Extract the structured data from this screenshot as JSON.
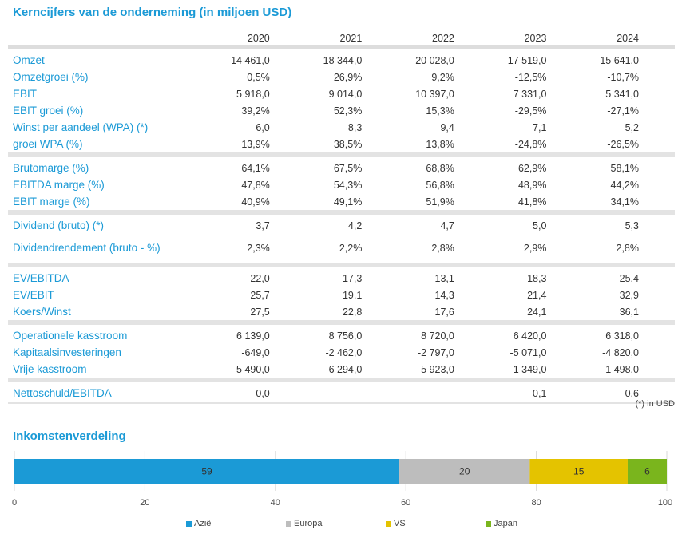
{
  "title": "Kerncijfers van de onderneming (in miljoen USD)",
  "table": {
    "years": [
      "2020",
      "2021",
      "2022",
      "2023",
      "2024"
    ],
    "groups": [
      [
        {
          "label": "Omzet",
          "values": [
            "14 461,0",
            "18 344,0",
            "20 028,0",
            "17 519,0",
            "15 641,0"
          ]
        },
        {
          "label": "Omzetgroei (%)",
          "values": [
            "0,5%",
            "26,9%",
            "9,2%",
            "-12,5%",
            "-10,7%"
          ]
        },
        {
          "label": "EBIT",
          "values": [
            "5 918,0",
            "9 014,0",
            "10 397,0",
            "7 331,0",
            "5 341,0"
          ]
        },
        {
          "label": "EBIT groei (%)",
          "values": [
            "39,2%",
            "52,3%",
            "15,3%",
            "-29,5%",
            "-27,1%"
          ]
        },
        {
          "label": "Winst per aandeel (WPA) (*)",
          "values": [
            "6,0",
            "8,3",
            "9,4",
            "7,1",
            "5,2"
          ]
        },
        {
          "label": "groei WPA (%)",
          "values": [
            "13,9%",
            "38,5%",
            "13,8%",
            "-24,8%",
            "-26,5%"
          ]
        }
      ],
      [
        {
          "label": "Brutomarge (%)",
          "values": [
            "64,1%",
            "67,5%",
            "68,8%",
            "62,9%",
            "58,1%"
          ]
        },
        {
          "label": "EBITDA marge (%)",
          "values": [
            "47,8%",
            "54,3%",
            "56,8%",
            "48,9%",
            "44,2%"
          ]
        },
        {
          "label": "EBIT marge (%)",
          "values": [
            "40,9%",
            "49,1%",
            "51,9%",
            "41,8%",
            "34,1%"
          ]
        }
      ],
      [
        {
          "label": "Dividend (bruto) (*)",
          "values": [
            "3,7",
            "4,2",
            "4,7",
            "5,0",
            "5,3"
          ]
        },
        {
          "label": "Dividendrendement (bruto - %)",
          "values": [
            "2,3%",
            "2,2%",
            "2,8%",
            "2,9%",
            "2,8%"
          ]
        }
      ],
      [
        {
          "label": "EV/EBITDA",
          "values": [
            "22,0",
            "17,3",
            "13,1",
            "18,3",
            "25,4"
          ]
        },
        {
          "label": "EV/EBIT",
          "values": [
            "25,7",
            "19,1",
            "14,3",
            "21,4",
            "32,9"
          ]
        },
        {
          "label": "Koers/Winst",
          "values": [
            "27,5",
            "22,8",
            "17,6",
            "24,1",
            "36,1"
          ]
        }
      ],
      [
        {
          "label": "Operationele kasstroom",
          "values": [
            "6 139,0",
            "8 756,0",
            "8 720,0",
            "6 420,0",
            "6 318,0"
          ]
        },
        {
          "label": "Kapitaalsinvesteringen",
          "values": [
            "-649,0",
            "-2 462,0",
            "-2 797,0",
            "-5 071,0",
            "-4 820,0"
          ]
        },
        {
          "label": "Vrije kasstroom",
          "values": [
            "5 490,0",
            "6 294,0",
            "5 923,0",
            "1 349,0",
            "1 498,0"
          ]
        }
      ],
      [
        {
          "label": "Nettoschuld/EBITDA",
          "values": [
            "0,0",
            "-",
            "-",
            "0,1",
            "0,6"
          ]
        }
      ]
    ]
  },
  "note": "(*) in USD",
  "chart_data": {
    "type": "bar",
    "stacked": true,
    "orientation": "horizontal",
    "title": "Inkomstenverdeling",
    "xlim": [
      0,
      100
    ],
    "xticks": [
      0,
      20,
      40,
      60,
      80,
      100
    ],
    "grid": true,
    "legend": "bottom",
    "series": [
      {
        "name": "Azië",
        "values": [
          59
        ],
        "color": "#1b9ad6"
      },
      {
        "name": "Europa",
        "values": [
          20
        ],
        "color": "#bdbdbd"
      },
      {
        "name": "VS",
        "values": [
          15
        ],
        "color": "#e4c300"
      },
      {
        "name": "Japan",
        "values": [
          6
        ],
        "color": "#7ab51d"
      }
    ]
  }
}
